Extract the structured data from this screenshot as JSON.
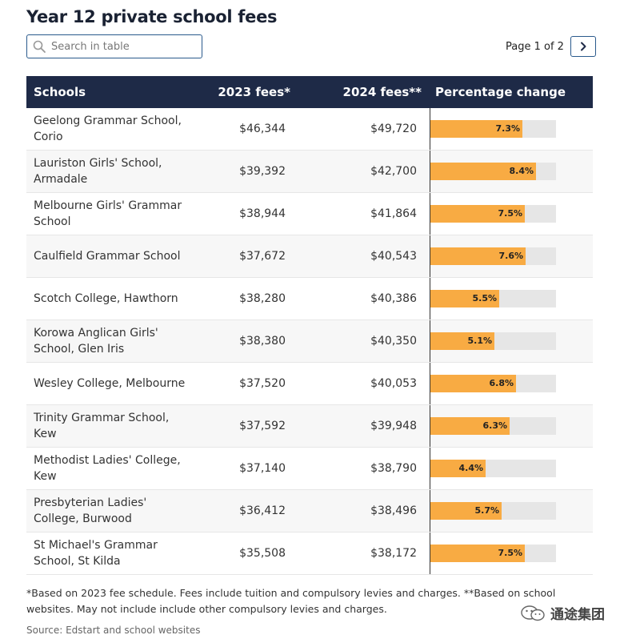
{
  "title": "Year 12 private school fees",
  "search": {
    "placeholder": "Search in table"
  },
  "pager": {
    "label": "Page 1 of 2"
  },
  "table": {
    "headers": {
      "school": "Schools",
      "fees2023": "2023 fees*",
      "fees2024": "2024 fees**",
      "change": "Percentage change"
    },
    "rows": [
      {
        "school": "Geelong Grammar School, Corio",
        "fees2023": "$46,344",
        "fees2024": "$49,720",
        "change": 7.3,
        "change_label": "7.3%"
      },
      {
        "school": "Lauriston Girls' School, Armadale",
        "fees2023": "$39,392",
        "fees2024": "$42,700",
        "change": 8.4,
        "change_label": "8.4%"
      },
      {
        "school": "Melbourne Girls' Grammar School",
        "fees2023": "$38,944",
        "fees2024": "$41,864",
        "change": 7.5,
        "change_label": "7.5%"
      },
      {
        "school": "Caulfield Grammar School",
        "fees2023": "$37,672",
        "fees2024": "$40,543",
        "change": 7.6,
        "change_label": "7.6%"
      },
      {
        "school": "Scotch College, Hawthorn",
        "fees2023": "$38,280",
        "fees2024": "$40,386",
        "change": 5.5,
        "change_label": "5.5%"
      },
      {
        "school": "Korowa Anglican Girls' School, Glen Iris",
        "fees2023": "$38,380",
        "fees2024": "$40,350",
        "change": 5.1,
        "change_label": "5.1%"
      },
      {
        "school": "Wesley College, Melbourne",
        "fees2023": "$37,520",
        "fees2024": "$40,053",
        "change": 6.8,
        "change_label": "6.8%"
      },
      {
        "school": "Trinity Grammar School, Kew",
        "fees2023": "$37,592",
        "fees2024": "$39,948",
        "change": 6.3,
        "change_label": "6.3%"
      },
      {
        "school": "Methodist Ladies' College, Kew",
        "fees2023": "$37,140",
        "fees2024": "$38,790",
        "change": 4.4,
        "change_label": "4.4%"
      },
      {
        "school": "Presbyterian Ladies' College, Burwood",
        "fees2023": "$36,412",
        "fees2024": "$38,496",
        "change": 5.7,
        "change_label": "5.7%"
      },
      {
        "school": "St Michael's Grammar School, St Kilda",
        "fees2023": "$35,508",
        "fees2024": "$38,172",
        "change": 7.5,
        "change_label": "7.5%"
      }
    ]
  },
  "chart_data": {
    "type": "table",
    "columns": [
      "Schools",
      "2023 fees*",
      "2024 fees**",
      "Percentage change"
    ],
    "bar_column": "Percentage change",
    "bar_max": 10.0,
    "categories": [
      "Geelong Grammar School, Corio",
      "Lauriston Girls' School, Armadale",
      "Melbourne Girls' Grammar School",
      "Caulfield Grammar School",
      "Scotch College, Hawthorn",
      "Korowa Anglican Girls' School, Glen Iris",
      "Wesley College, Melbourne",
      "Trinity Grammar School, Kew",
      "Methodist Ladies' College, Kew",
      "Presbyterian Ladies' College, Burwood",
      "St Michael's Grammar School, St Kilda"
    ],
    "series": [
      {
        "name": "2023 fees*",
        "values": [
          46344,
          39392,
          38944,
          37672,
          38280,
          38380,
          37520,
          37592,
          37140,
          36412,
          35508
        ]
      },
      {
        "name": "2024 fees**",
        "values": [
          49720,
          42700,
          41864,
          40543,
          40386,
          40350,
          40053,
          39948,
          38790,
          38496,
          38172
        ]
      },
      {
        "name": "Percentage change",
        "values": [
          7.3,
          8.4,
          7.5,
          7.6,
          5.5,
          5.1,
          6.8,
          6.3,
          4.4,
          5.7,
          7.5
        ]
      }
    ],
    "colors": {
      "header_bg": "#1e2a47",
      "bar_fill": "#f8ab43",
      "bar_track": "#e6e6e6"
    }
  },
  "footnote": "*Based on 2023 fee schedule. Fees include tuition and compulsory levies and charges. **Based on school websites. May not include include other compulsory levies and charges.",
  "source": "Source: Edstart and school websites",
  "watermark": {
    "text": "通途集团",
    "icon": "wechat-icon"
  }
}
